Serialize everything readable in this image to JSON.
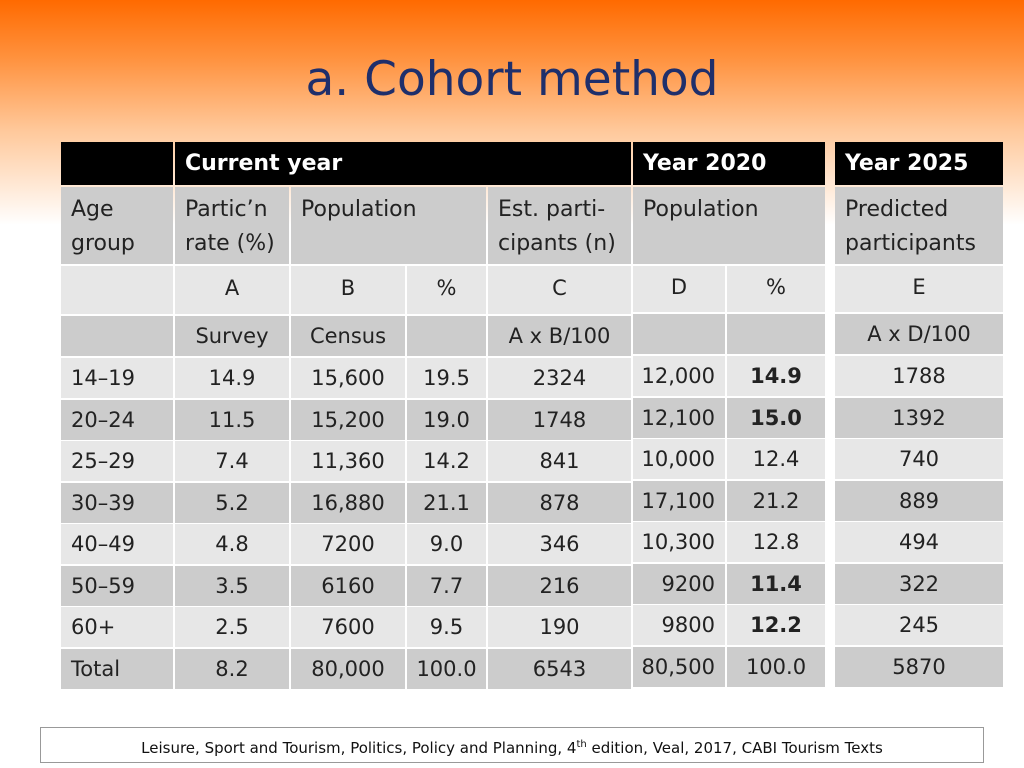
{
  "title": "a. Cohort method",
  "table1": {
    "group_header": "Current year",
    "col_headers": [
      "Age group",
      "Partic’n rate (%)",
      "Population",
      "Est. parti-cipants (n)"
    ],
    "col_header_lines": {
      "age": [
        "Age",
        "group"
      ],
      "rate": [
        "Partic’n",
        "rate (%)"
      ],
      "pop": "Population",
      "est": [
        "Est. parti-",
        "cipants (n)"
      ]
    },
    "letters": [
      "",
      "A",
      "B",
      "%",
      "C"
    ],
    "sources": [
      "",
      "Survey",
      "Census",
      "",
      "A x B/100"
    ],
    "rows": [
      [
        "14–19",
        "14.9",
        "15,600",
        "19.5",
        "2324"
      ],
      [
        "20–24",
        "11.5",
        "15,200",
        "19.0",
        "1748"
      ],
      [
        "25–29",
        "7.4",
        "11,360",
        "14.2",
        "841"
      ],
      [
        "30–39",
        "5.2",
        "16,880",
        "21.1",
        "878"
      ],
      [
        "40–49",
        "4.8",
        "7200",
        "9.0",
        "346"
      ],
      [
        "50–59",
        "3.5",
        "6160",
        "7.7",
        "216"
      ],
      [
        "60+",
        "2.5",
        "7600",
        "9.5",
        "190"
      ],
      [
        "Total",
        "8.2",
        "80,000",
        "100.0",
        "6543"
      ]
    ]
  },
  "table2": {
    "group_header": "Year 2020",
    "col_header": "Population",
    "letters": [
      "D",
      "%"
    ],
    "rows": [
      [
        "12,000",
        "14.9"
      ],
      [
        "12,100",
        "15.0"
      ],
      [
        "10,000",
        "12.4"
      ],
      [
        "17,100",
        "21.2"
      ],
      [
        "10,300",
        "12.8"
      ],
      [
        "9200",
        "11.4"
      ],
      [
        "9800",
        "12.2"
      ],
      [
        "80,500",
        "100.0"
      ]
    ],
    "bold_pct_rows": [
      0,
      1,
      5,
      6
    ]
  },
  "table3": {
    "group_header": "Year 2025",
    "col_header_lines": [
      "Predicted",
      "participants"
    ],
    "letter": "E",
    "source": "A x D/100",
    "rows": [
      "1788",
      "1392",
      "740",
      "889",
      "494",
      "322",
      "245",
      "5870"
    ]
  },
  "footer": {
    "before_sup": "Leisure, Sport and Tourism, Politics, Policy and Planning, 4",
    "sup": "th",
    "after_sup": " edition, Veal, 2017, CABI Tourism Texts"
  }
}
